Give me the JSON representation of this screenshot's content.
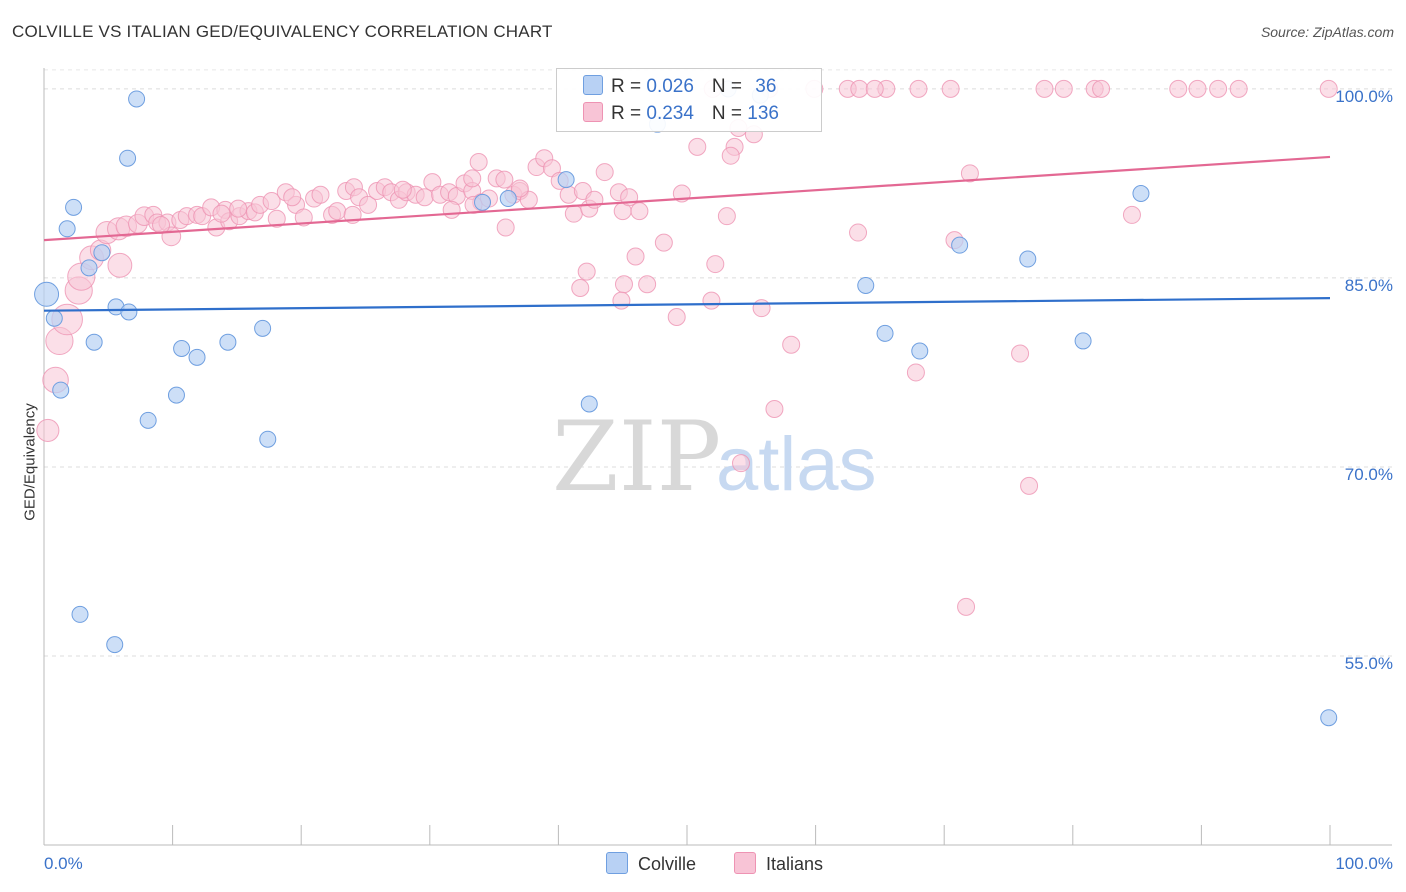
{
  "title": "COLVILLE VS ITALIAN GED/EQUIVALENCY CORRELATION CHART",
  "source": "Source: ZipAtlas.com",
  "colors": {
    "colville": "#6f9fe0",
    "colville_fill": "#b8d1f4",
    "colville_line": "#2f6fcb",
    "italians": "#ee93b3",
    "italians_fill": "#f8c4d6",
    "italians_line": "#e36893",
    "axis_label": "#3a72c9"
  },
  "legend": {
    "colville": {
      "r_label": "R = ",
      "r_value": "0.026",
      "n_label": "N = ",
      "n_value": "36"
    },
    "italians": {
      "r_label": "R = ",
      "r_value": "0.234",
      "n_label": "N = ",
      "n_value": "136"
    }
  },
  "bottom_legend": {
    "colville": "Colville",
    "italians": "Italians"
  },
  "watermark": {
    "zip": "ZIP",
    "atlas": "atlas"
  },
  "chart_data": {
    "type": "scatter",
    "title": "COLVILLE VS ITALIAN GED/EQUIVALENCY CORRELATION CHART",
    "xlabel": "",
    "ylabel": "GED/Equivalency",
    "xlim": [
      0,
      100
    ],
    "ylim": [
      40,
      101.5
    ],
    "x_tick_labels": [
      "0.0%",
      "100.0%"
    ],
    "y_ticks": [
      55,
      70,
      85,
      100
    ],
    "y_tick_labels": [
      "55.0%",
      "70.0%",
      "85.0%",
      "100.0%"
    ],
    "grid": true,
    "legend_position": "top-center",
    "series": [
      {
        "name": "Colville",
        "trend": {
          "x": [
            0,
            100
          ],
          "y": [
            82.4,
            83.4
          ]
        },
        "points": [
          [
            0.2,
            83.7,
            1.5
          ],
          [
            0.8,
            81.8,
            1
          ],
          [
            1.3,
            76.1,
            1
          ],
          [
            1.8,
            88.9,
            1
          ],
          [
            2.3,
            90.6,
            1
          ],
          [
            2.8,
            58.3,
            1
          ],
          [
            3.5,
            85.8,
            1
          ],
          [
            3.9,
            79.9,
            1
          ],
          [
            4.5,
            87.0,
            1
          ],
          [
            5.6,
            82.7,
            1
          ],
          [
            6.5,
            94.5,
            1
          ],
          [
            6.6,
            82.3,
            1
          ],
          [
            7.2,
            99.2,
            1
          ],
          [
            8.1,
            73.7,
            1
          ],
          [
            10.3,
            75.7,
            1
          ],
          [
            10.7,
            79.4,
            1
          ],
          [
            11.9,
            78.7,
            1
          ],
          [
            14.3,
            79.9,
            1
          ],
          [
            17.0,
            81.0,
            1
          ],
          [
            17.4,
            72.2,
            1
          ],
          [
            34.1,
            91.0,
            1
          ],
          [
            36.1,
            91.3,
            1
          ],
          [
            40.6,
            92.8,
            1
          ],
          [
            42.4,
            75.0,
            1
          ],
          [
            47.7,
            97.2,
            1
          ],
          [
            53.2,
            100.0,
            1
          ],
          [
            55.7,
            99.5,
            1
          ],
          [
            63.9,
            84.4,
            1
          ],
          [
            65.4,
            80.6,
            1
          ],
          [
            68.1,
            79.2,
            1
          ],
          [
            71.2,
            87.6,
            1
          ],
          [
            76.5,
            86.5,
            1
          ],
          [
            80.8,
            80.0,
            1
          ],
          [
            85.3,
            91.7,
            1
          ],
          [
            99.9,
            50.1,
            1
          ],
          [
            5.5,
            55.9,
            1
          ]
        ]
      },
      {
        "name": "Italians",
        "trend": {
          "x": [
            0,
            100
          ],
          "y": [
            88.0,
            94.6
          ]
        },
        "points": [
          [
            0.3,
            72.9,
            1.3
          ],
          [
            0.9,
            76.9,
            1.5
          ],
          [
            1.2,
            80.0,
            1.6
          ],
          [
            1.8,
            81.7,
            1.8
          ],
          [
            2.7,
            84.0,
            1.6
          ],
          [
            2.9,
            85.1,
            1.6
          ],
          [
            3.7,
            86.6,
            1.4
          ],
          [
            4.4,
            87.2,
            1.2
          ],
          [
            4.9,
            88.6,
            1.3
          ],
          [
            5.8,
            88.9,
            1.3
          ],
          [
            5.9,
            86.0,
            1.4
          ],
          [
            6.4,
            89.1,
            1.2
          ],
          [
            7.3,
            89.3,
            1.1
          ],
          [
            7.8,
            89.9,
            1.1
          ],
          [
            8.5,
            90.0,
            1
          ],
          [
            8.8,
            89.4,
            1
          ],
          [
            9.6,
            89.4,
            1
          ],
          [
            9.9,
            88.3,
            1.1
          ],
          [
            10.6,
            89.6,
            1
          ],
          [
            11.1,
            89.9,
            1
          ],
          [
            11.9,
            90.0,
            1
          ],
          [
            12.3,
            89.9,
            1
          ],
          [
            13.0,
            90.6,
            1
          ],
          [
            13.4,
            89.0,
            1
          ],
          [
            14.1,
            90.4,
            1
          ],
          [
            14.4,
            89.5,
            1
          ],
          [
            15.2,
            89.9,
            1
          ],
          [
            15.9,
            90.3,
            1
          ],
          [
            16.4,
            90.2,
            1
          ],
          [
            16.8,
            90.8,
            1
          ],
          [
            17.7,
            91.1,
            1
          ],
          [
            18.1,
            89.7,
            1
          ],
          [
            18.8,
            91.8,
            1
          ],
          [
            19.6,
            90.8,
            1
          ],
          [
            20.2,
            89.8,
            1
          ],
          [
            21.0,
            91.3,
            1
          ],
          [
            21.5,
            91.6,
            1
          ],
          [
            22.4,
            90.0,
            1
          ],
          [
            22.8,
            90.3,
            1
          ],
          [
            23.5,
            91.9,
            1
          ],
          [
            24.1,
            92.2,
            1
          ],
          [
            24.5,
            91.4,
            1
          ],
          [
            25.2,
            90.8,
            1
          ],
          [
            25.9,
            91.9,
            1
          ],
          [
            26.5,
            92.2,
            1
          ],
          [
            27.0,
            91.8,
            1
          ],
          [
            27.6,
            91.2,
            1
          ],
          [
            28.2,
            91.8,
            1
          ],
          [
            28.9,
            91.6,
            1
          ],
          [
            29.6,
            91.4,
            1
          ],
          [
            30.2,
            92.6,
            1
          ],
          [
            30.8,
            91.6,
            1
          ],
          [
            31.5,
            91.8,
            1
          ],
          [
            32.1,
            91.5,
            1
          ],
          [
            32.7,
            92.5,
            1
          ],
          [
            33.3,
            91.9,
            1
          ],
          [
            34.0,
            91.0,
            1
          ],
          [
            34.6,
            91.3,
            1
          ],
          [
            35.2,
            92.9,
            1
          ],
          [
            35.8,
            92.8,
            1
          ],
          [
            36.5,
            91.6,
            1
          ],
          [
            37.0,
            91.9,
            1
          ],
          [
            37.7,
            91.2,
            1
          ],
          [
            38.3,
            93.8,
            1
          ],
          [
            38.9,
            94.5,
            1
          ],
          [
            39.5,
            93.7,
            1
          ],
          [
            40.1,
            92.7,
            1
          ],
          [
            40.8,
            91.6,
            1
          ],
          [
            41.2,
            90.1,
            1
          ],
          [
            41.9,
            91.9,
            1
          ],
          [
            42.4,
            90.5,
            1
          ],
          [
            43.6,
            93.4,
            1
          ],
          [
            44.7,
            91.8,
            1
          ],
          [
            45.0,
            90.3,
            1
          ],
          [
            45.5,
            91.4,
            1
          ],
          [
            46.3,
            90.3,
            1
          ],
          [
            31.7,
            90.4,
            1
          ],
          [
            33.3,
            92.9,
            1
          ],
          [
            33.8,
            94.2,
            1
          ],
          [
            35.9,
            89.0,
            1
          ],
          [
            33.4,
            90.8,
            1
          ],
          [
            49.6,
            91.7,
            1
          ],
          [
            46.0,
            86.7,
            1
          ],
          [
            48.2,
            87.8,
            1
          ],
          [
            50.8,
            95.4,
            1
          ],
          [
            53.7,
            95.4,
            1
          ],
          [
            53.4,
            94.7,
            1
          ],
          [
            53.1,
            89.9,
            1
          ],
          [
            52.2,
            86.1,
            1
          ],
          [
            54.0,
            96.9,
            1
          ],
          [
            55.2,
            96.4,
            1
          ],
          [
            45.1,
            84.5,
            1
          ],
          [
            44.9,
            83.2,
            1
          ],
          [
            42.2,
            85.5,
            1
          ],
          [
            41.7,
            84.2,
            1
          ],
          [
            46.9,
            84.5,
            1
          ],
          [
            49.2,
            81.9,
            1
          ],
          [
            51.9,
            83.2,
            1
          ],
          [
            55.8,
            82.6,
            1
          ],
          [
            58.1,
            79.7,
            1
          ],
          [
            54.2,
            70.3,
            1
          ],
          [
            56.8,
            74.6,
            1
          ],
          [
            63.3,
            88.6,
            1
          ],
          [
            65.5,
            100.0,
            1
          ],
          [
            70.8,
            88.0,
            1
          ],
          [
            72.0,
            93.3,
            1
          ],
          [
            68.0,
            100.0,
            1
          ],
          [
            75.9,
            79.0,
            1
          ],
          [
            76.6,
            68.5,
            1
          ],
          [
            71.7,
            58.9,
            1
          ],
          [
            67.8,
            77.5,
            1
          ],
          [
            77.8,
            100.0,
            1
          ],
          [
            79.3,
            100.0,
            1
          ],
          [
            81.7,
            100.0,
            1
          ],
          [
            84.6,
            90.0,
            1
          ],
          [
            88.2,
            100.0,
            1
          ],
          [
            89.7,
            100.0,
            1
          ],
          [
            92.9,
            100.0,
            1
          ],
          [
            99.9,
            100.0,
            1
          ],
          [
            52.0,
            100.0,
            1
          ],
          [
            56.4,
            100.0,
            1
          ],
          [
            59.9,
            100.0,
            1
          ],
          [
            62.5,
            100.0,
            1
          ],
          [
            63.4,
            100.0,
            1
          ],
          [
            82.2,
            100.0,
            1
          ],
          [
            91.3,
            100.0,
            1
          ],
          [
            64.6,
            100.0,
            1
          ],
          [
            70.5,
            100.0,
            1
          ],
          [
            9.1,
            89.2,
            1
          ],
          [
            15.1,
            90.5,
            1
          ],
          [
            24.0,
            90.0,
            1
          ],
          [
            13.8,
            90.1,
            1
          ],
          [
            19.3,
            91.4,
            1
          ],
          [
            27.9,
            92.0,
            1
          ],
          [
            37.0,
            92.1,
            1
          ],
          [
            42.8,
            91.2,
            1
          ]
        ]
      }
    ]
  }
}
